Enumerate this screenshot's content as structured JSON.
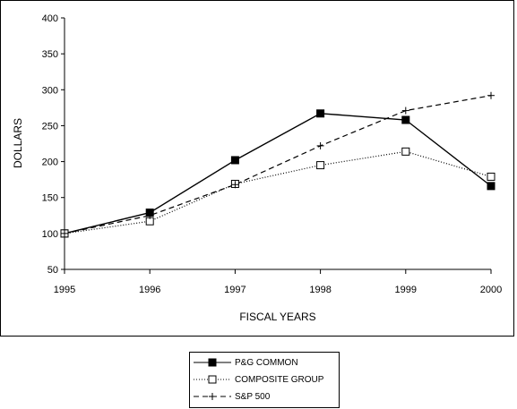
{
  "chart_data": {
    "type": "line",
    "x": [
      "1995",
      "1996",
      "1997",
      "1998",
      "1999",
      "2000"
    ],
    "ylabel": "DOLLARS",
    "xlabel": "FISCAL YEARS",
    "ylim": [
      50,
      400
    ],
    "yticks": [
      "50",
      "100",
      "150",
      "200",
      "250",
      "300",
      "350",
      "400"
    ],
    "grid": false,
    "legend_position": "bottom",
    "series": [
      {
        "name": "P&G COMMON",
        "values": [
          100,
          129,
          202,
          267,
          258,
          166
        ],
        "style": "solid",
        "marker": "filled-square",
        "color": "#000000"
      },
      {
        "name": "COMPOSITE GROUP",
        "values": [
          100,
          117,
          169,
          195,
          214,
          179
        ],
        "style": "dotted",
        "marker": "open-square",
        "color": "#000000"
      },
      {
        "name": "S&P 500",
        "values": [
          100,
          125,
          168,
          222,
          271,
          292
        ],
        "style": "dashed",
        "marker": "plus",
        "color": "#000000"
      }
    ]
  }
}
